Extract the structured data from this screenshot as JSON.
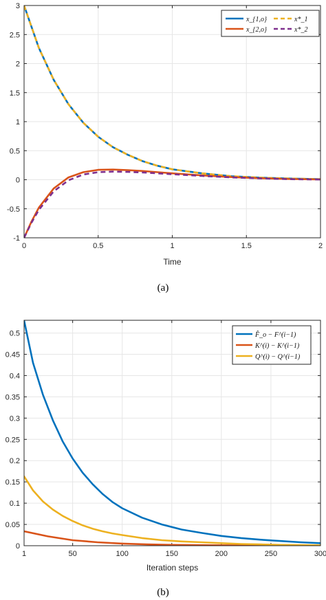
{
  "colors": {
    "blue": "#0072BD",
    "orange": "#D95319",
    "yellow": "#EDB120",
    "purple": "#7E2F8E",
    "grid": "#e6e6e6",
    "axis": "#262626"
  },
  "chart_data": [
    {
      "type": "line",
      "caption": "(a)",
      "xlabel": "Time",
      "ylabel": "",
      "xlim": [
        0,
        2
      ],
      "ylim": [
        -1,
        3
      ],
      "xticks": [
        "0",
        "0.5",
        "1",
        "1.5",
        "2"
      ],
      "yticks": [
        "-1",
        "-0.5",
        "0",
        "0.5",
        "1",
        "1.5",
        "2",
        "2.5",
        "3"
      ],
      "grid": true,
      "legend_position": "top-right",
      "legend_columns": 2,
      "series": [
        {
          "name": "x_{1,o}",
          "color": "#0072BD",
          "style": "solid",
          "x": [
            0,
            0.1,
            0.2,
            0.3,
            0.4,
            0.5,
            0.6,
            0.7,
            0.8,
            0.9,
            1.0,
            1.2,
            1.4,
            1.6,
            1.8,
            2.0
          ],
          "y": [
            3.0,
            2.27,
            1.72,
            1.3,
            0.98,
            0.74,
            0.56,
            0.43,
            0.32,
            0.24,
            0.18,
            0.11,
            0.06,
            0.035,
            0.02,
            0.01
          ]
        },
        {
          "name": "x*_1",
          "color": "#EDB120",
          "style": "dashed",
          "x": [
            0,
            0.1,
            0.2,
            0.3,
            0.4,
            0.5,
            0.6,
            0.7,
            0.8,
            0.9,
            1.0,
            1.2,
            1.4,
            1.6,
            1.8,
            2.0
          ],
          "y": [
            3.0,
            2.27,
            1.72,
            1.3,
            0.98,
            0.74,
            0.56,
            0.43,
            0.32,
            0.24,
            0.18,
            0.11,
            0.06,
            0.035,
            0.02,
            0.01
          ]
        },
        {
          "name": "x_{2,o}",
          "color": "#D95319",
          "style": "solid",
          "x": [
            0,
            0.05,
            0.1,
            0.2,
            0.3,
            0.4,
            0.5,
            0.6,
            0.7,
            0.8,
            0.9,
            1.0,
            1.2,
            1.4,
            1.6,
            1.8,
            2.0
          ],
          "y": [
            -1.0,
            -0.72,
            -0.48,
            -0.15,
            0.04,
            0.13,
            0.17,
            0.175,
            0.165,
            0.15,
            0.13,
            0.11,
            0.075,
            0.045,
            0.025,
            0.012,
            0.005
          ]
        },
        {
          "name": "x*_2",
          "color": "#7E2F8E",
          "style": "dashed",
          "x": [
            0,
            0.05,
            0.1,
            0.2,
            0.3,
            0.4,
            0.5,
            0.6,
            0.7,
            0.8,
            0.9,
            1.0,
            1.2,
            1.4,
            1.6,
            1.8,
            2.0
          ],
          "y": [
            -1.0,
            -0.74,
            -0.52,
            -0.2,
            -0.01,
            0.09,
            0.13,
            0.14,
            0.135,
            0.125,
            0.11,
            0.095,
            0.065,
            0.04,
            0.022,
            0.01,
            0.004
          ]
        }
      ]
    },
    {
      "type": "line",
      "caption": "(b)",
      "xlabel": "Iteration steps",
      "ylabel": "",
      "xlim": [
        1,
        300
      ],
      "ylim": [
        0,
        0.53
      ],
      "xticks": [
        "1",
        "50",
        "100",
        "150",
        "200",
        "250",
        "300"
      ],
      "yticks": [
        "0",
        "0.05",
        "0.1",
        "0.15",
        "0.2",
        "0.25",
        "0.3",
        "0.35",
        "0.4",
        "0.45",
        "0.5"
      ],
      "grid": true,
      "legend_position": "top-right",
      "legend_columns": 1,
      "series": [
        {
          "name": "F̂_o − F^(i−1)",
          "color": "#0072BD",
          "style": "solid",
          "x": [
            1,
            10,
            20,
            30,
            40,
            50,
            60,
            70,
            80,
            90,
            100,
            120,
            140,
            160,
            180,
            200,
            220,
            240,
            260,
            280,
            300
          ],
          "y": [
            0.53,
            0.43,
            0.355,
            0.295,
            0.245,
            0.205,
            0.172,
            0.145,
            0.122,
            0.103,
            0.088,
            0.066,
            0.05,
            0.038,
            0.03,
            0.023,
            0.018,
            0.014,
            0.011,
            0.008,
            0.006
          ]
        },
        {
          "name": "K^(i) − K^(i−1)",
          "color": "#D95319",
          "style": "solid",
          "x": [
            1,
            25,
            50,
            75,
            100,
            125,
            150,
            200,
            250,
            300
          ],
          "y": [
            0.034,
            0.022,
            0.013,
            0.008,
            0.005,
            0.003,
            0.002,
            0.001,
            0.0005,
            0.0002
          ]
        },
        {
          "name": "Q^(i) − Q^(i−1)",
          "color": "#EDB120",
          "style": "solid",
          "x": [
            1,
            10,
            20,
            30,
            40,
            50,
            60,
            70,
            80,
            90,
            100,
            120,
            140,
            160,
            180,
            200,
            220,
            240,
            260,
            280,
            300
          ],
          "y": [
            0.163,
            0.13,
            0.104,
            0.085,
            0.07,
            0.058,
            0.048,
            0.04,
            0.034,
            0.029,
            0.025,
            0.018,
            0.013,
            0.01,
            0.008,
            0.006,
            0.004,
            0.003,
            0.002,
            0.0015,
            0.001
          ]
        }
      ]
    }
  ]
}
